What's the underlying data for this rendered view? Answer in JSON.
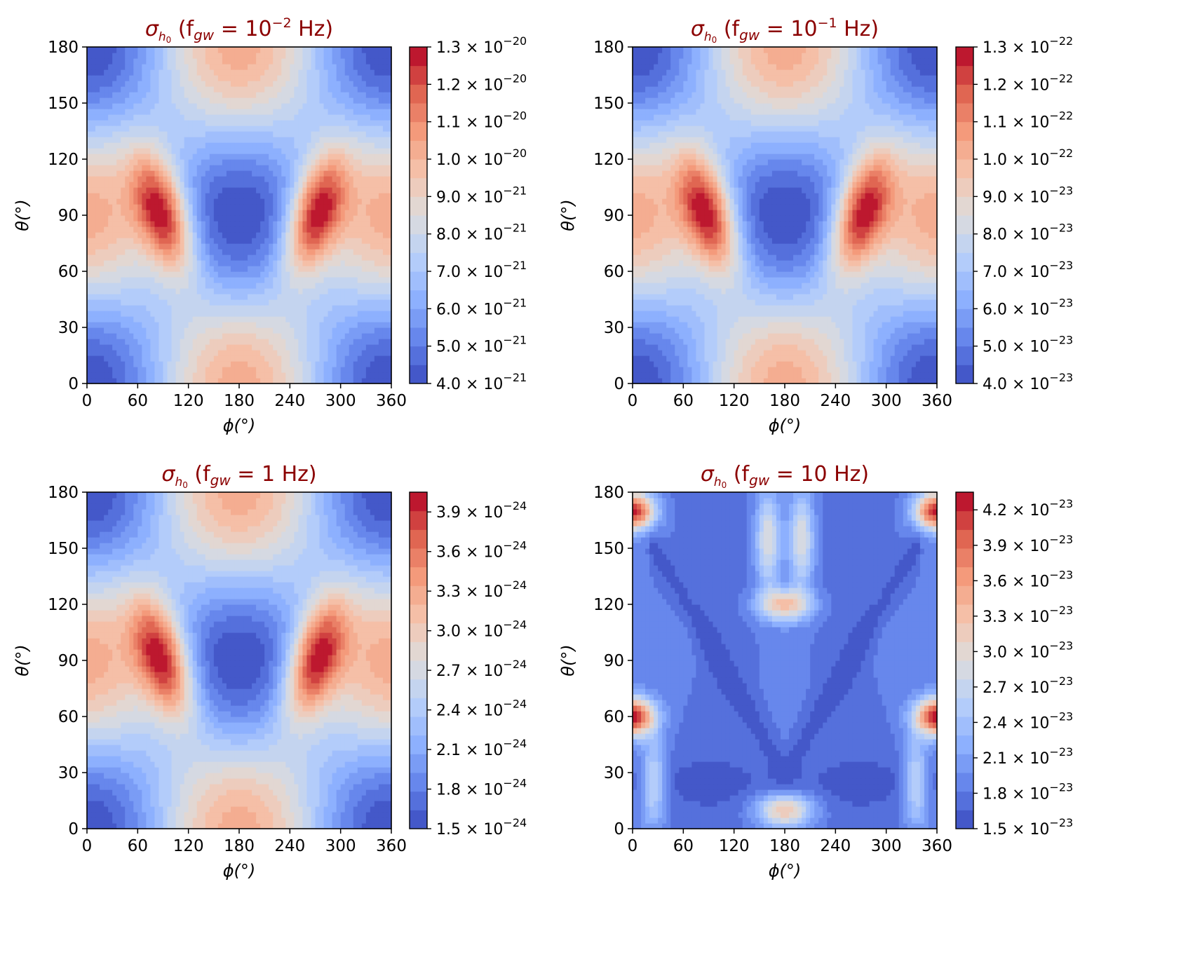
{
  "chart_data": [
    {
      "type": "heatmap",
      "title": "σ_h0 (f_gw = 10^-2 Hz)",
      "title_parts": {
        "pre": "(f",
        "sub": "gw",
        "eq": " = 10",
        "sup": "−2",
        "post": " Hz)"
      },
      "xlabel": "ϕ(°)",
      "ylabel": "θ(°)",
      "x_ticks": [
        "0",
        "60",
        "120",
        "180",
        "240",
        "300",
        "360"
      ],
      "y_ticks": [
        "0",
        "30",
        "60",
        "90",
        "120",
        "150",
        "180"
      ],
      "xlim": [
        0,
        360
      ],
      "ylim": [
        0,
        180
      ],
      "pattern": "two-lobe",
      "colorbar": {
        "range": [
          4e-21,
          1.3e-20
        ],
        "ticks": [
          {
            "mant": "4.0",
            "exp": "−21"
          },
          {
            "mant": "5.0",
            "exp": "−21"
          },
          {
            "mant": "6.0",
            "exp": "−21"
          },
          {
            "mant": "7.0",
            "exp": "−21"
          },
          {
            "mant": "8.0",
            "exp": "−21"
          },
          {
            "mant": "9.0",
            "exp": "−21"
          },
          {
            "mant": "1.0",
            "exp": "−20"
          },
          {
            "mant": "1.1",
            "exp": "−20"
          },
          {
            "mant": "1.2",
            "exp": "−20"
          },
          {
            "mant": "1.3",
            "exp": "−20"
          }
        ],
        "tick_fracs": [
          0,
          0.1111,
          0.2222,
          0.3333,
          0.4444,
          0.5556,
          0.6667,
          0.7778,
          0.8889,
          1.0
        ]
      }
    },
    {
      "type": "heatmap",
      "title": "σ_h0 (f_gw = 10^-1 Hz)",
      "title_parts": {
        "pre": "(f",
        "sub": "gw",
        "eq": " = 10",
        "sup": "−1",
        "post": " Hz)"
      },
      "xlabel": "ϕ(°)",
      "ylabel": "θ(°)",
      "x_ticks": [
        "0",
        "60",
        "120",
        "180",
        "240",
        "300",
        "360"
      ],
      "y_ticks": [
        "0",
        "30",
        "60",
        "90",
        "120",
        "150",
        "180"
      ],
      "xlim": [
        0,
        360
      ],
      "ylim": [
        0,
        180
      ],
      "pattern": "two-lobe",
      "colorbar": {
        "range": [
          4e-23,
          1.3e-22
        ],
        "ticks": [
          {
            "mant": "4.0",
            "exp": "−23"
          },
          {
            "mant": "5.0",
            "exp": "−23"
          },
          {
            "mant": "6.0",
            "exp": "−23"
          },
          {
            "mant": "7.0",
            "exp": "−23"
          },
          {
            "mant": "8.0",
            "exp": "−23"
          },
          {
            "mant": "9.0",
            "exp": "−23"
          },
          {
            "mant": "1.0",
            "exp": "−22"
          },
          {
            "mant": "1.1",
            "exp": "−22"
          },
          {
            "mant": "1.2",
            "exp": "−22"
          },
          {
            "mant": "1.3",
            "exp": "−22"
          }
        ],
        "tick_fracs": [
          0,
          0.1111,
          0.2222,
          0.3333,
          0.4444,
          0.5556,
          0.6667,
          0.7778,
          0.8889,
          1.0
        ]
      }
    },
    {
      "type": "heatmap",
      "title": "σ_h0 (f_gw = 1 Hz)",
      "title_parts": {
        "pre": "(f",
        "sub": "gw",
        "eq": " = 1",
        "sup": "",
        "post": " Hz)"
      },
      "xlabel": "ϕ(°)",
      "ylabel": "θ(°)",
      "x_ticks": [
        "0",
        "60",
        "120",
        "180",
        "240",
        "300",
        "360"
      ],
      "y_ticks": [
        "0",
        "30",
        "60",
        "90",
        "120",
        "150",
        "180"
      ],
      "xlim": [
        0,
        360
      ],
      "ylim": [
        0,
        180
      ],
      "pattern": "two-lobe",
      "colorbar": {
        "range": [
          1.5e-24,
          4.05e-24
        ],
        "ticks": [
          {
            "mant": "1.5",
            "exp": "−24"
          },
          {
            "mant": "1.8",
            "exp": "−24"
          },
          {
            "mant": "2.1",
            "exp": "−24"
          },
          {
            "mant": "2.4",
            "exp": "−24"
          },
          {
            "mant": "2.7",
            "exp": "−24"
          },
          {
            "mant": "3.0",
            "exp": "−24"
          },
          {
            "mant": "3.3",
            "exp": "−24"
          },
          {
            "mant": "3.6",
            "exp": "−24"
          },
          {
            "mant": "3.9",
            "exp": "−24"
          }
        ],
        "tick_fracs": [
          0,
          0.1176,
          0.2353,
          0.3529,
          0.4706,
          0.5882,
          0.7059,
          0.8235,
          0.9412
        ]
      }
    },
    {
      "type": "heatmap",
      "title": "σ_h0 (f_gw = 10 Hz)",
      "title_parts": {
        "pre": "(f",
        "sub": "gw",
        "eq": " = 10",
        "sup": "",
        "post": " Hz)"
      },
      "xlabel": "ϕ(°)",
      "ylabel": "θ(°)",
      "x_ticks": [
        "0",
        "60",
        "120",
        "180",
        "240",
        "300",
        "360"
      ],
      "y_ticks": [
        "0",
        "30",
        "60",
        "90",
        "120",
        "150",
        "180"
      ],
      "xlim": [
        0,
        360
      ],
      "ylim": [
        0,
        180
      ],
      "pattern": "complex",
      "colorbar": {
        "range": [
          1.5e-23,
          4.35e-23
        ],
        "ticks": [
          {
            "mant": "1.5",
            "exp": "−23"
          },
          {
            "mant": "1.8",
            "exp": "−23"
          },
          {
            "mant": "2.1",
            "exp": "−23"
          },
          {
            "mant": "2.4",
            "exp": "−23"
          },
          {
            "mant": "2.7",
            "exp": "−23"
          },
          {
            "mant": "3.0",
            "exp": "−23"
          },
          {
            "mant": "3.3",
            "exp": "−23"
          },
          {
            "mant": "3.6",
            "exp": "−23"
          },
          {
            "mant": "3.9",
            "exp": "−23"
          },
          {
            "mant": "4.2",
            "exp": "−23"
          }
        ],
        "tick_fracs": [
          0,
          0.1053,
          0.2105,
          0.3158,
          0.4211,
          0.5263,
          0.6316,
          0.7368,
          0.8421,
          0.9474
        ]
      }
    }
  ],
  "colormap": "coolwarm",
  "colors": {
    "low": "#3b4cc0",
    "mid": "#dddcdc",
    "high": "#b40426",
    "title": "#8b0000"
  }
}
